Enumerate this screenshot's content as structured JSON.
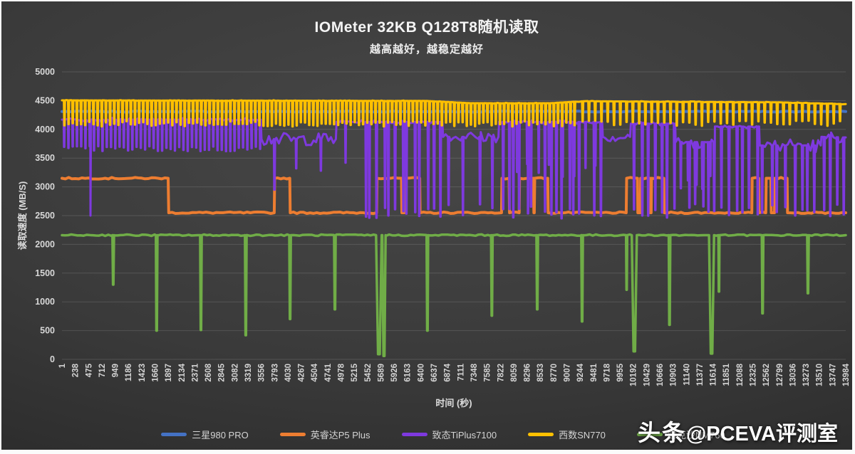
{
  "watermark": {
    "text_bold": "头条",
    "text_rest": "@PCEVA评测室"
  },
  "chart_data": {
    "type": "line",
    "title": "IOMeter 32KB Q128T8随机读取",
    "subtitle": "越高越好，越稳定越好",
    "xlabel": "时间 (秒)",
    "ylabel": "读取速度 (MB/S)",
    "ylim": [
      0,
      5000
    ],
    "ytick_step": 500,
    "x_range": [
      1,
      13984
    ],
    "x_tick_interval": 237,
    "x_ticks": [
      1,
      238,
      475,
      712,
      949,
      1186,
      1423,
      1660,
      1897,
      2134,
      2371,
      2608,
      2845,
      3082,
      3319,
      3556,
      3793,
      4030,
      4267,
      4504,
      4741,
      4978,
      5215,
      5452,
      5689,
      5926,
      6163,
      6400,
      6637,
      6874,
      7111,
      7348,
      7585,
      7822,
      8059,
      8296,
      8533,
      8770,
      9007,
      9244,
      9481,
      9718,
      9955,
      10192,
      10429,
      10666,
      10903,
      11140,
      11377,
      11614,
      11851,
      12088,
      12325,
      12562,
      12799,
      13036,
      13273,
      13510,
      13747,
      13984
    ],
    "grid": true,
    "legend_position": "bottom",
    "background": "dark-gray-gradient",
    "series": [
      {
        "name": "三星980 PRO",
        "color": "#4472C4",
        "stroke_width": 4,
        "noise": 9,
        "sample_every": 70,
        "base": [
          [
            1,
            4310
          ],
          [
            13984,
            4310
          ]
        ]
      },
      {
        "name": "英睿达P5 Plus",
        "color": "#ED7D31",
        "stroke_width": 4,
        "noise": 14,
        "sample_every": 60,
        "base": [
          [
            1,
            3150
          ],
          [
            1895,
            3150
          ],
          [
            1905,
            2550
          ],
          [
            3788,
            2550
          ],
          [
            3795,
            3150
          ],
          [
            4065,
            3150
          ],
          [
            4072,
            2550
          ],
          [
            5615,
            2550
          ],
          [
            5622,
            3150
          ],
          [
            6058,
            3150
          ],
          [
            6065,
            2550
          ],
          [
            6125,
            2550
          ],
          [
            6132,
            3150
          ],
          [
            6383,
            3150
          ],
          [
            6390,
            2550
          ],
          [
            7843,
            2550
          ],
          [
            7850,
            3150
          ],
          [
            7978,
            3150
          ],
          [
            7985,
            2550
          ],
          [
            8158,
            2550
          ],
          [
            8165,
            3150
          ],
          [
            8413,
            3150
          ],
          [
            8420,
            2550
          ],
          [
            8428,
            2550
          ],
          [
            8435,
            3150
          ],
          [
            8668,
            3150
          ],
          [
            8675,
            2550
          ],
          [
            10068,
            2550
          ],
          [
            10075,
            3150
          ],
          [
            10268,
            3150
          ],
          [
            10275,
            2550
          ],
          [
            10318,
            2550
          ],
          [
            10325,
            3150
          ],
          [
            10488,
            3150
          ],
          [
            10495,
            2550
          ],
          [
            10513,
            2550
          ],
          [
            10520,
            3150
          ],
          [
            10738,
            3150
          ],
          [
            10745,
            2550
          ],
          [
            12308,
            2550
          ],
          [
            12315,
            3150
          ],
          [
            12433,
            3150
          ],
          [
            12440,
            2550
          ],
          [
            12558,
            2550
          ],
          [
            12565,
            3150
          ],
          [
            12648,
            3150
          ],
          [
            12655,
            2550
          ],
          [
            12713,
            2550
          ],
          [
            12720,
            3150
          ],
          [
            12938,
            3150
          ],
          [
            12945,
            2550
          ],
          [
            13984,
            2550
          ]
        ]
      },
      {
        "name": "致态TiPlus7100",
        "color": "#7E39DF",
        "stroke_width": 3,
        "noise": 30,
        "sample_every": 45,
        "base": [
          [
            1,
            4170
          ],
          [
            3548,
            4170
          ],
          [
            3560,
            3830,
            110
          ],
          [
            4888,
            3830
          ],
          [
            4900,
            4130
          ],
          [
            6788,
            4130
          ],
          [
            6800,
            3870,
            95
          ],
          [
            7788,
            3870
          ],
          [
            7800,
            4130
          ],
          [
            9638,
            4130
          ],
          [
            9650,
            3870,
            95
          ],
          [
            10138,
            3870
          ],
          [
            10150,
            4100
          ],
          [
            10938,
            4100
          ],
          [
            10950,
            3780,
            115
          ],
          [
            11638,
            3780
          ],
          [
            11650,
            4050
          ],
          [
            12438,
            4050
          ],
          [
            12450,
            3720,
            125
          ],
          [
            13538,
            3720
          ],
          [
            13550,
            3870,
            95
          ],
          [
            13984,
            3860
          ]
        ],
        "comb": [
          {
            "from": 40,
            "to": 3548,
            "period": 76,
            "bottom": 3660,
            "vary": 50,
            "w": 20
          }
        ],
        "dips": [
          [
            505,
            2500,
            28
          ],
          [
            3792,
            2950,
            24
          ],
          [
            4180,
            3320,
            20
          ],
          [
            4620,
            3280,
            20
          ],
          [
            5060,
            3420,
            18
          ],
          [
            13948,
            2520,
            24
          ]
        ],
        "clusters": [
          {
            "from": 5350,
            "to": 6780,
            "count": 13,
            "vmin": 2450,
            "vmax": 2650,
            "w": 24,
            "jitter": 70
          },
          {
            "from": 6800,
            "to": 7790,
            "count": 4,
            "vmin": 2500,
            "vmax": 2750,
            "w": 22,
            "jitter": 120
          },
          {
            "from": 7800,
            "to": 9640,
            "count": 17,
            "vmin": 2450,
            "vmax": 2680,
            "w": 24,
            "jitter": 70
          },
          {
            "from": 8000,
            "to": 9600,
            "count": 8,
            "vmin": 3150,
            "vmax": 3450,
            "w": 18,
            "jitter": 90
          },
          {
            "from": 10150,
            "to": 12440,
            "count": 19,
            "vmin": 2450,
            "vmax": 2700,
            "w": 24,
            "jitter": 70
          },
          {
            "from": 10950,
            "to": 11640,
            "count": 5,
            "vmin": 2900,
            "vmax": 3200,
            "w": 18,
            "jitter": 80
          },
          {
            "from": 12450,
            "to": 13900,
            "count": 11,
            "vmin": 2480,
            "vmax": 2750,
            "w": 24,
            "jitter": 80
          }
        ]
      },
      {
        "name": "西数SN770",
        "color": "#FFC000",
        "stroke_width": 3,
        "noise": 7,
        "sample_every": 80,
        "base": [
          [
            1,
            4505
          ],
          [
            6500,
            4495
          ],
          [
            7300,
            4455
          ],
          [
            8700,
            4455
          ],
          [
            9300,
            4490
          ],
          [
            12800,
            4470
          ],
          [
            13984,
            4440
          ]
        ],
        "comb": [
          {
            "from": 45,
            "to": 9200,
            "period": 74,
            "bottom": 4095,
            "vary": 45,
            "w": 22
          },
          {
            "from": 9290,
            "to": 13984,
            "period": 112,
            "bottom": 4105,
            "vary": 45,
            "w": 24
          }
        ]
      },
      {
        "name": "雷克沙NM760",
        "color": "#70AD47",
        "stroke_width": 3.5,
        "noise": 13,
        "sample_every": 55,
        "base": [
          [
            1,
            2160
          ],
          [
            13984,
            2160
          ]
        ],
        "dips": [
          [
            915,
            1300,
            28
          ],
          [
            1690,
            500,
            28
          ],
          [
            2480,
            510,
            28
          ],
          [
            3280,
            420,
            28
          ],
          [
            4070,
            700,
            28
          ],
          [
            4870,
            870,
            28
          ],
          [
            5655,
            90,
            100
          ],
          [
            5745,
            60,
            60
          ],
          [
            6520,
            500,
            28
          ],
          [
            7670,
            760,
            28
          ],
          [
            8480,
            870,
            28
          ],
          [
            9280,
            660,
            28
          ],
          [
            10075,
            1210,
            20
          ],
          [
            10212,
            140,
            90
          ],
          [
            10840,
            600,
            28
          ],
          [
            11590,
            100,
            90
          ],
          [
            11722,
            1180,
            18
          ],
          [
            12500,
            800,
            28
          ],
          [
            13310,
            1150,
            28
          ]
        ]
      }
    ]
  }
}
